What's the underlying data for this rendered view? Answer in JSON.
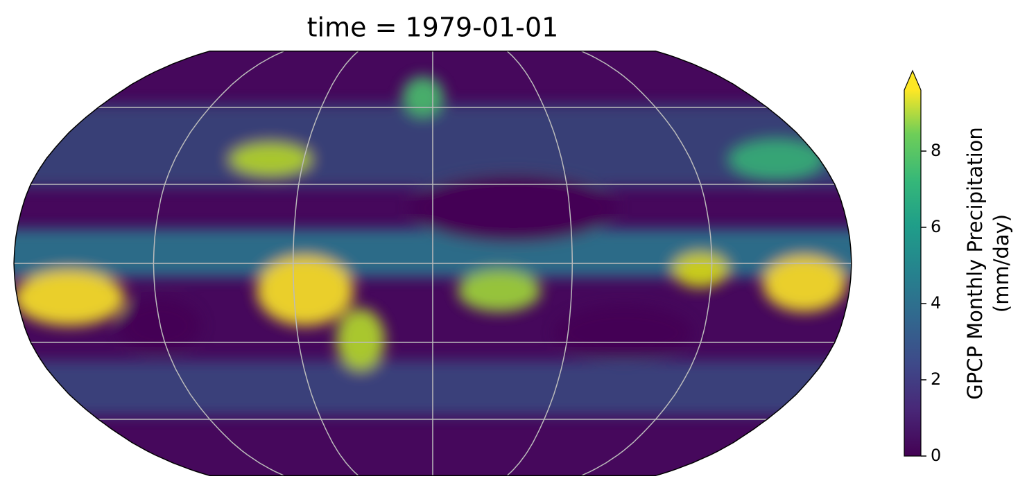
{
  "title": "time = 1979-01-01",
  "colorbar": {
    "label": [
      "GPCP Monthly Precipitation",
      "(mm/day)"
    ],
    "lim": [
      0,
      9.6
    ],
    "ticks": [
      0,
      2,
      4,
      6,
      8
    ]
  }
}
